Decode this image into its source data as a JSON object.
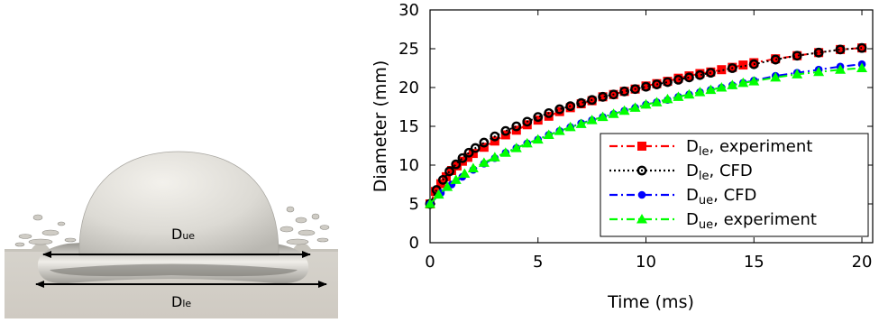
{
  "simulation_panel": {
    "label_upper": "D",
    "label_upper_sub": "ue",
    "label_lower": "D",
    "label_lower_sub": "le"
  },
  "chart_data": {
    "type": "scatter",
    "xlabel": "Time (ms)",
    "ylabel": "Diameter (mm)",
    "xlim": [
      0,
      20.5
    ],
    "ylim": [
      0,
      30
    ],
    "xticks": [
      0,
      5,
      10,
      15,
      20
    ],
    "yticks": [
      0,
      5,
      10,
      15,
      20,
      25,
      30
    ],
    "xtick_labels": [
      "0",
      "5",
      "10",
      "15",
      "20"
    ],
    "ytick_labels": [
      "0",
      "5",
      "10",
      "15",
      "20",
      "25",
      "30"
    ],
    "grid": false,
    "legend_position": "bottom-right",
    "series": [
      {
        "name": "D_le, experiment",
        "legend_main": "D",
        "legend_sub": "le",
        "legend_rest": ", experiment",
        "color": "#ff0000",
        "marker": "square",
        "linestyle": "dash-dot",
        "x": [
          0.0,
          0.25,
          0.5,
          0.75,
          1.0,
          1.25,
          1.5,
          1.75,
          2.0,
          2.5,
          3.0,
          3.5,
          4.0,
          4.5,
          5.0,
          5.5,
          6.0,
          6.5,
          7.0,
          7.5,
          8.0,
          8.5,
          9.0,
          9.5,
          10.0,
          10.5,
          11.0,
          11.5,
          12.0,
          12.5,
          13.0,
          13.5,
          14.0,
          14.5,
          15.0,
          16.0,
          17.0,
          18.0,
          19.0,
          20.0
        ],
        "y": [
          5.0,
          6.6,
          7.6,
          8.5,
          9.3,
          9.9,
          10.5,
          11.0,
          11.5,
          12.3,
          13.1,
          13.9,
          14.5,
          15.2,
          15.8,
          16.3,
          16.9,
          17.4,
          17.9,
          18.3,
          18.8,
          19.1,
          19.5,
          19.8,
          20.2,
          20.5,
          20.8,
          21.2,
          21.5,
          21.8,
          22.0,
          22.3,
          22.6,
          22.9,
          23.2,
          23.7,
          24.1,
          24.5,
          24.9,
          25.1
        ]
      },
      {
        "name": "D_le, CFD",
        "legend_main": "D",
        "legend_sub": "le",
        "legend_rest": ", CFD",
        "color": "#000000",
        "marker": "circle-open",
        "linestyle": "dotted",
        "x": [
          0.0,
          0.3,
          0.6,
          0.9,
          1.2,
          1.5,
          1.8,
          2.1,
          2.5,
          3.0,
          3.5,
          4.0,
          4.5,
          5.0,
          5.5,
          6.0,
          6.5,
          7.0,
          7.5,
          8.0,
          8.5,
          9.0,
          9.5,
          10.0,
          10.5,
          11.0,
          11.5,
          12.0,
          12.5,
          13.0,
          14.0,
          15.0,
          16.0,
          17.0,
          18.0,
          19.0,
          20.0
        ],
        "y": [
          5.0,
          6.8,
          8.1,
          9.2,
          10.1,
          10.9,
          11.6,
          12.2,
          12.9,
          13.7,
          14.4,
          15.0,
          15.6,
          16.2,
          16.7,
          17.2,
          17.6,
          18.0,
          18.4,
          18.8,
          19.1,
          19.5,
          19.8,
          20.1,
          20.4,
          20.7,
          21.0,
          21.3,
          21.6,
          21.9,
          22.5,
          23.0,
          23.6,
          24.1,
          24.5,
          24.9,
          25.1
        ]
      },
      {
        "name": "D_ue, CFD",
        "legend_main": "D",
        "legend_sub": "ue",
        "legend_rest": ", CFD",
        "color": "#0000ff",
        "marker": "circle-filled",
        "linestyle": "dash-dot",
        "x": [
          0.0,
          0.5,
          1.0,
          1.5,
          2.0,
          2.5,
          3.0,
          3.5,
          4.0,
          4.5,
          5.0,
          5.5,
          6.0,
          6.5,
          7.0,
          7.5,
          8.0,
          8.5,
          9.0,
          9.5,
          10.0,
          10.5,
          11.0,
          11.5,
          12.0,
          12.5,
          13.0,
          13.5,
          14.0,
          14.5,
          15.0,
          16.0,
          17.0,
          18.0,
          19.0,
          20.0
        ],
        "y": [
          5.0,
          6.4,
          7.5,
          8.5,
          9.4,
          10.2,
          10.9,
          11.6,
          12.2,
          12.8,
          13.3,
          13.9,
          14.4,
          14.9,
          15.4,
          15.8,
          16.2,
          16.6,
          17.0,
          17.4,
          17.8,
          18.1,
          18.4,
          18.8,
          19.1,
          19.4,
          19.7,
          20.0,
          20.3,
          20.6,
          20.9,
          21.5,
          21.9,
          22.3,
          22.7,
          23.0
        ]
      },
      {
        "name": "D_ue, experiment",
        "legend_main": "D",
        "legend_sub": "ue",
        "legend_rest": ", experiment",
        "color": "#00ff00",
        "marker": "triangle",
        "linestyle": "dash-dot",
        "x": [
          0.0,
          0.4,
          0.8,
          1.2,
          1.6,
          2.0,
          2.5,
          3.0,
          3.5,
          4.0,
          4.5,
          5.0,
          5.5,
          6.0,
          6.5,
          7.0,
          7.5,
          8.0,
          8.5,
          9.0,
          9.5,
          10.0,
          10.5,
          11.0,
          11.5,
          12.0,
          12.5,
          13.0,
          13.5,
          14.0,
          14.5,
          15.0,
          16.0,
          17.0,
          18.0,
          19.0,
          20.0
        ],
        "y": [
          5.0,
          6.2,
          7.2,
          8.1,
          8.9,
          9.6,
          10.3,
          11.0,
          11.6,
          12.2,
          12.8,
          13.3,
          13.9,
          14.4,
          14.9,
          15.3,
          15.8,
          16.2,
          16.6,
          17.0,
          17.4,
          17.8,
          18.1,
          18.5,
          18.8,
          19.1,
          19.4,
          19.7,
          20.0,
          20.3,
          20.6,
          20.8,
          21.3,
          21.7,
          22.0,
          22.3,
          22.5
        ]
      }
    ]
  }
}
